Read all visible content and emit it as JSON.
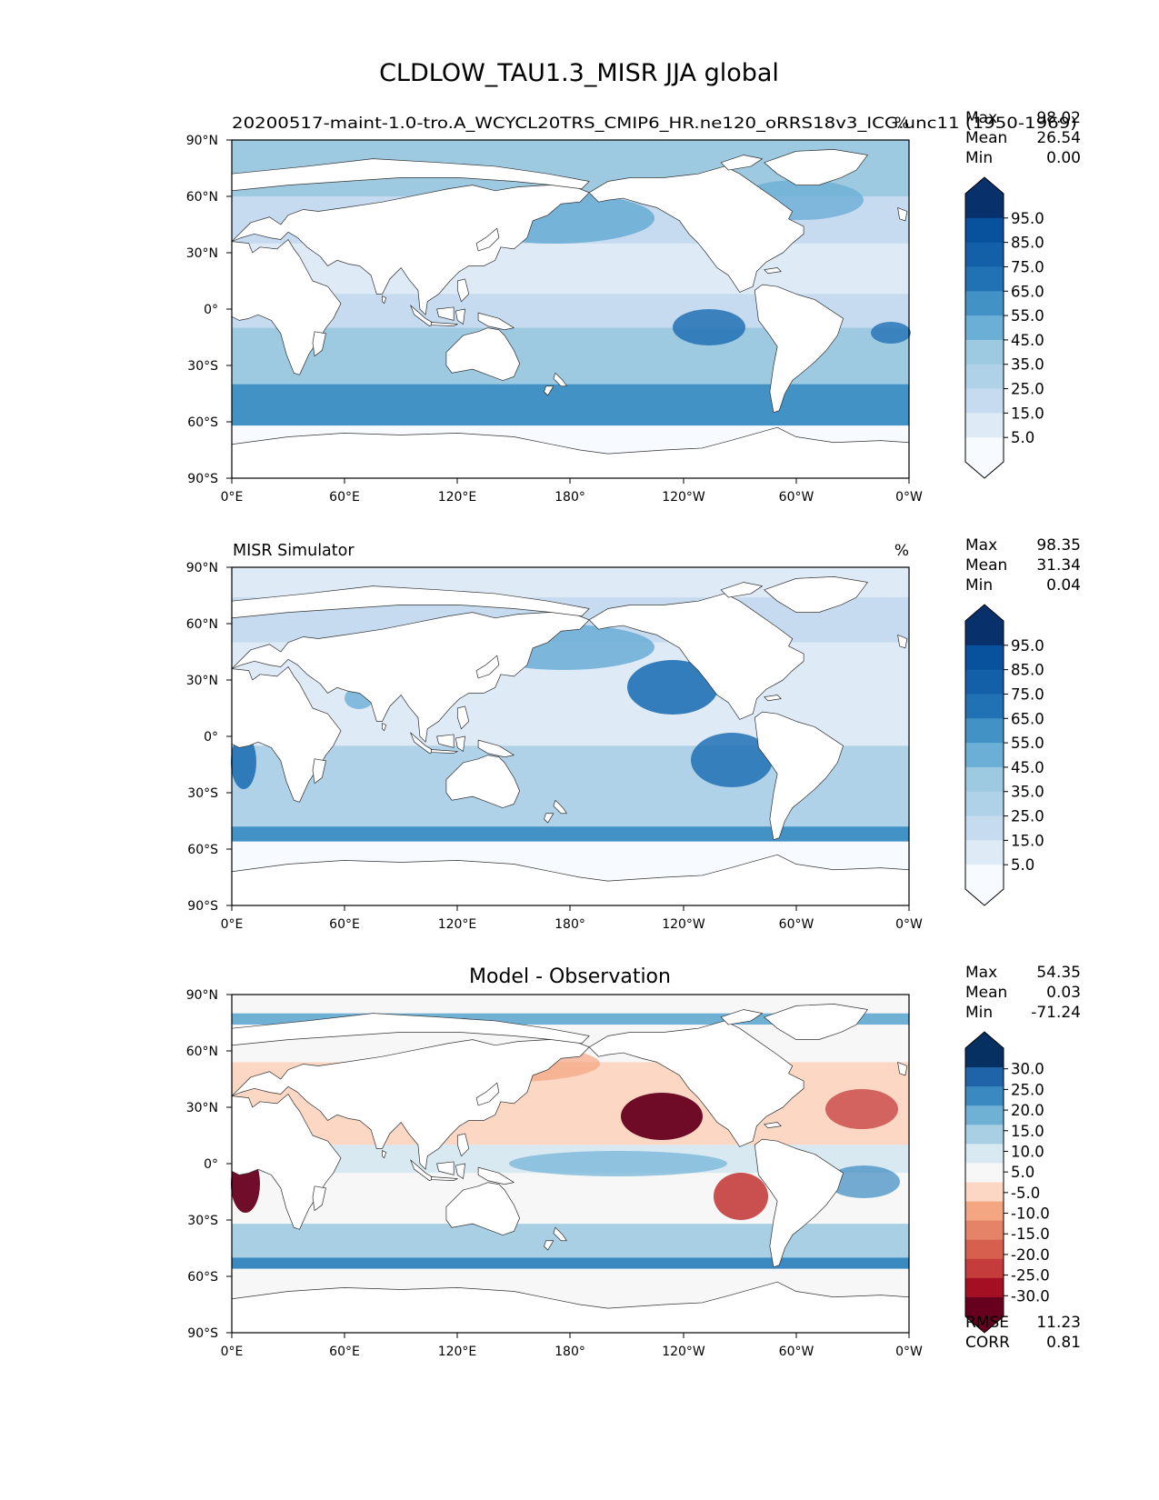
{
  "figure": {
    "title": "CLDLOW_TAU1.3_MISR JJA global"
  },
  "axes": {
    "lon_ticks": [
      "0°E",
      "60°E",
      "120°E",
      "180°",
      "120°W",
      "60°W",
      "0°W"
    ],
    "lat_ticks": [
      "90°N",
      "60°N",
      "30°N",
      "0°",
      "30°S",
      "60°S",
      "90°S"
    ]
  },
  "colors": {
    "blues": [
      "#f7fbff",
      "#deebf7",
      "#c6dbef",
      "#b0d2e8",
      "#9ecae1",
      "#6baed6",
      "#4292c6",
      "#2171b5",
      "#1460a8",
      "#08519c",
      "#08306b"
    ],
    "diverging": [
      "#67001f",
      "#a50f24",
      "#c43c3c",
      "#d6604d",
      "#e58368",
      "#f4a582",
      "#fbd7c4",
      "#f7f7f7",
      "#d8e9f2",
      "#a9cfe5",
      "#6fb0d5",
      "#3a89c0",
      "#1f63a8",
      "#053061"
    ],
    "land": "#ffffff",
    "coast": "#333333"
  },
  "panels": [
    {
      "id": "test",
      "left_title": "",
      "center_title": "",
      "right_title": "20200517-maint-1.0-tro.A_WCYCL20TRS_CMIP6_HR.ne120_oRRS18v3_ICG.unc11 (1950-1969)",
      "units": "%",
      "stats": [
        {
          "label": "Max",
          "value": "98.02"
        },
        {
          "label": "Mean",
          "value": "26.54"
        },
        {
          "label": "Min",
          "value": "0.00"
        }
      ],
      "colorbar_ticks": [
        "95.0",
        "85.0",
        "75.0",
        "65.0",
        "55.0",
        "45.0",
        "35.0",
        "25.0",
        "15.0",
        "5.0"
      ],
      "metrics": []
    },
    {
      "id": "reference",
      "left_title": "MISR Simulator",
      "center_title": "",
      "right_title": "",
      "units": "%",
      "stats": [
        {
          "label": "Max",
          "value": "98.35"
        },
        {
          "label": "Mean",
          "value": "31.34"
        },
        {
          "label": "Min",
          "value": "0.04"
        }
      ],
      "colorbar_ticks": [
        "95.0",
        "85.0",
        "75.0",
        "65.0",
        "55.0",
        "45.0",
        "35.0",
        "25.0",
        "15.0",
        "5.0"
      ],
      "metrics": []
    },
    {
      "id": "difference",
      "left_title": "",
      "center_title": "Model - Observation",
      "right_title": "",
      "units": "",
      "stats": [
        {
          "label": "Max",
          "value": "54.35"
        },
        {
          "label": "Mean",
          "value": "0.03"
        },
        {
          "label": "Min",
          "value": "-71.24"
        }
      ],
      "colorbar_ticks": [
        "30.0",
        "25.0",
        "20.0",
        "15.0",
        "10.0",
        "5.0",
        "-5.0",
        "-10.0",
        "-15.0",
        "-20.0",
        "-25.0",
        "-30.0"
      ],
      "metrics": [
        {
          "label": "RMSE",
          "value": "11.23"
        },
        {
          "label": "CORR",
          "value": "0.81"
        }
      ]
    }
  ]
}
